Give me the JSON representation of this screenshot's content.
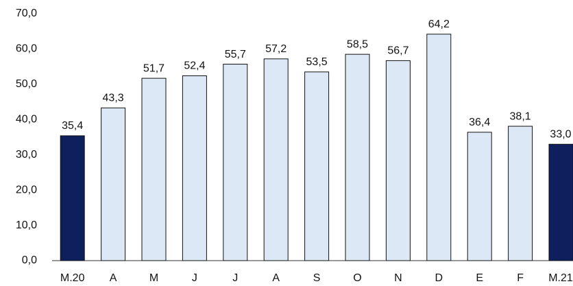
{
  "chart_data": {
    "type": "bar",
    "categories": [
      "M.20",
      "A",
      "M",
      "J",
      "J",
      "A",
      "S",
      "O",
      "N",
      "D",
      "E",
      "F",
      "M.21"
    ],
    "values": [
      35.4,
      43.3,
      51.7,
      52.4,
      55.7,
      57.2,
      53.5,
      58.5,
      56.7,
      64.2,
      36.4,
      38.1,
      33.0
    ],
    "value_labels": [
      "35,4",
      "43,3",
      "51,7",
      "52,4",
      "55,7",
      "57,2",
      "53,5",
      "58,5",
      "56,7",
      "64,2",
      "36,4",
      "38,1",
      "33,0"
    ],
    "colors": [
      "#0d1f5c",
      "#dce8f5",
      "#dce8f5",
      "#dce8f5",
      "#dce8f5",
      "#dce8f5",
      "#dce8f5",
      "#dce8f5",
      "#dce8f5",
      "#dce8f5",
      "#dce8f5",
      "#dce8f5",
      "#0d1f5c"
    ],
    "ylim": [
      0,
      70
    ],
    "yticks": [
      {
        "value": 0,
        "label": "0,0"
      },
      {
        "value": 10,
        "label": "10,0"
      },
      {
        "value": 20,
        "label": "20,0"
      },
      {
        "value": 30,
        "label": "30,0"
      },
      {
        "value": 40,
        "label": "40,0"
      },
      {
        "value": 50,
        "label": "50,0"
      },
      {
        "value": 60,
        "label": "60,0"
      },
      {
        "value": 70,
        "label": "70,0"
      }
    ],
    "grid": false
  }
}
